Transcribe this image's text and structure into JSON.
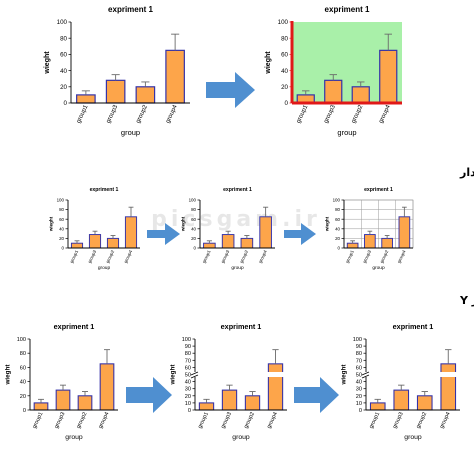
{
  "chart_title": "expriment 1",
  "headings": [
    "آموزش تعیین چارچوب برای نمودار",
    "آموزش چند قسمتی نمودن محور Y"
  ],
  "watermark": "picsgam.ir",
  "colors": {
    "bar_fill": "#fda54a",
    "bar_stroke": "#3532a8",
    "frame_red": "#e01818",
    "bg_green": "#a9f0a9",
    "arrow": "#4f8fd0"
  },
  "chart_data": [
    {
      "type": "bar",
      "title": "expriment 1",
      "xlabel": "group",
      "ylabel": "wieght",
      "categories": [
        "group1",
        "group3",
        "group2",
        "group4"
      ],
      "values": [
        10,
        28,
        20,
        65
      ],
      "errors": [
        5,
        7,
        6,
        20
      ],
      "ylim": [
        0,
        100
      ],
      "yticks": [
        0,
        20,
        40,
        60,
        80,
        100
      ],
      "grid": false
    },
    {
      "type": "bar",
      "title": "expriment 1",
      "xlabel": "group",
      "ylabel": "wieght",
      "categories": [
        "group1",
        "group3",
        "group2",
        "group4"
      ],
      "values": [
        10,
        28,
        20,
        65
      ],
      "errors": [
        5,
        7,
        6,
        20
      ],
      "ylim": [
        0,
        100
      ],
      "yticks": [
        0,
        20,
        40,
        60,
        80,
        100
      ],
      "grid": false
    },
    {
      "type": "bar",
      "title": "expriment 1",
      "xlabel": "group",
      "ylabel": "wieght",
      "categories": [
        "group1",
        "group3",
        "group2",
        "group4"
      ],
      "values": [
        10,
        28,
        20,
        65
      ],
      "errors": [
        5,
        7,
        6,
        20
      ],
      "ylim": [
        0,
        100
      ],
      "yticks": [
        0,
        20,
        40,
        60,
        80,
        100
      ],
      "grid": false
    },
    {
      "type": "bar",
      "title": "expriment 1",
      "xlabel": "group",
      "ylabel": "wieght",
      "categories": [
        "group1",
        "group3",
        "group2",
        "group4"
      ],
      "values": [
        10,
        28,
        20,
        65
      ],
      "errors": [
        5,
        7,
        6,
        20
      ],
      "ylim": [
        0,
        100
      ],
      "yticks": [
        0,
        20,
        40,
        60,
        80,
        100
      ],
      "grid": false
    },
    {
      "type": "bar",
      "title": "expriment 1",
      "xlabel": "group",
      "ylabel": "wieght",
      "categories": [
        "group1",
        "group3",
        "group2",
        "group4"
      ],
      "values": [
        10,
        28,
        20,
        65
      ],
      "errors": [
        5,
        7,
        6,
        20
      ],
      "ylim": [
        0,
        100
      ],
      "yticks": [
        0,
        20,
        40,
        60,
        80,
        100
      ],
      "grid": true
    },
    {
      "type": "bar",
      "title": "expriment 1",
      "xlabel": "group",
      "ylabel": "wieght",
      "categories": [
        "group1",
        "group3",
        "group2",
        "group4"
      ],
      "values": [
        10,
        28,
        20,
        65
      ],
      "errors": [
        5,
        7,
        6,
        20
      ],
      "ylim": [
        0,
        100
      ],
      "yticks": [
        0,
        20,
        40,
        60,
        80,
        100
      ],
      "grid": false
    },
    {
      "type": "bar",
      "title": "expriment 1",
      "xlabel": "group",
      "ylabel": "wieght",
      "categories": [
        "group1",
        "group3",
        "group2",
        "group4"
      ],
      "values": [
        10,
        28,
        20,
        65
      ],
      "errors": [
        5,
        7,
        6,
        20
      ],
      "ylim": [
        0,
        100
      ],
      "yticks": [
        0,
        10,
        20,
        30,
        40,
        50,
        60,
        70,
        80,
        90,
        100
      ],
      "grid": false
    },
    {
      "type": "bar",
      "title": "expriment 1",
      "xlabel": "group",
      "ylabel": "wieght",
      "categories": [
        "group1",
        "group3",
        "group2",
        "group4"
      ],
      "values": [
        10,
        28,
        20,
        65
      ],
      "errors": [
        5,
        7,
        6,
        20
      ],
      "ylim": [
        0,
        100
      ],
      "yticks": [
        0,
        10,
        20,
        30,
        40,
        50,
        60,
        70,
        80,
        90,
        100
      ],
      "grid": false
    }
  ]
}
